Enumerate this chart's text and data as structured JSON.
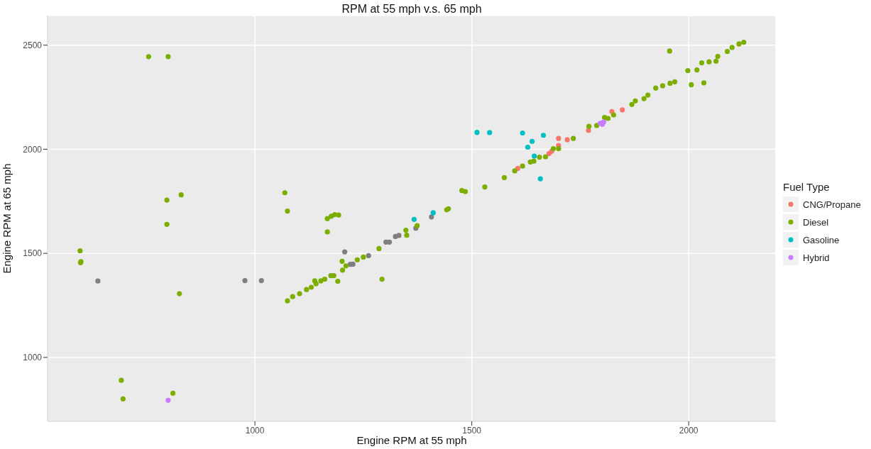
{
  "chart_data": {
    "type": "scatter",
    "title": "RPM at 55 mph v.s. 65 mph",
    "xlabel": "Engine RPM at 55 mph",
    "ylabel": "Engine RPM at 65 mph",
    "legend_title": "Fuel Type",
    "xlim": [
      522,
      2201
    ],
    "ylim": [
      693,
      2642
    ],
    "xticks": [
      1000,
      1500,
      2000
    ],
    "yticks": [
      1000,
      1500,
      2000,
      2500
    ],
    "grid": true,
    "legend": "right",
    "marker": "circle",
    "series": [
      {
        "color": "#7f7f7f",
        "x": [
          638,
          977,
          1015,
          1207,
          1220,
          1226,
          1262,
          1302,
          1310,
          1324,
          1332,
          1371,
          1407
        ],
        "values": [
          1367,
          1369,
          1369,
          1507,
          1447,
          1448,
          1489,
          1554,
          1554,
          1581,
          1586,
          1621,
          1675
        ]
      },
      {
        "name": "CNG/Propane",
        "color": "#f8766d",
        "x": [
          1606,
          1678,
          1684,
          1700,
          1700,
          1720,
          1769,
          1823,
          1847
        ],
        "values": [
          1908,
          1979,
          1990,
          2052,
          2018,
          2046,
          2091,
          2181,
          2189
        ]
      },
      {
        "name": "Diesel",
        "color": "#7cae00",
        "x": [
          755,
          800,
          797,
          830,
          797,
          597,
          599,
          598,
          826,
          692,
          696,
          811,
          1069,
          1075,
          1167,
          1176,
          1184,
          1193,
          1167,
          1075,
          1087,
          1103,
          1119,
          1130,
          1141,
          1152,
          1161,
          1175,
          1182,
          1138,
          1191,
          1201,
          1202,
          1210,
          1236,
          1250,
          1286,
          1293,
          1348,
          1350,
          1374,
          1442,
          1446,
          1477,
          1485,
          1530,
          1575,
          1599,
          1617,
          1635,
          1643,
          1656,
          1670,
          1688,
          1700,
          1734,
          1770,
          1788,
          1806,
          1814,
          1827,
          1869,
          1877,
          1897,
          1906,
          1924,
          1940,
          1957,
          1968,
          1956,
          1998,
          2019,
          2006,
          2035,
          2030,
          2047,
          2063,
          2067,
          2089,
          2100,
          2116,
          2127
        ],
        "values": [
          2445,
          2445,
          1756,
          1781,
          1639,
          1512,
          1460,
          1455,
          1306,
          890,
          801,
          828,
          1791,
          1703,
          1667,
          1678,
          1686,
          1684,
          1603,
          1272,
          1292,
          1306,
          1326,
          1337,
          1354,
          1368,
          1376,
          1393,
          1393,
          1368,
          1366,
          1462,
          1419,
          1440,
          1469,
          1482,
          1523,
          1376,
          1611,
          1587,
          1633,
          1709,
          1714,
          1802,
          1797,
          1819,
          1864,
          1896,
          1919,
          1939,
          1943,
          1962,
          1964,
          2003,
          2003,
          2052,
          2110,
          2114,
          2153,
          2148,
          2165,
          2215,
          2232,
          2243,
          2260,
          2294,
          2305,
          2317,
          2324,
          2472,
          2378,
          2381,
          2310,
          2319,
          2415,
          2420,
          2423,
          2446,
          2470,
          2489,
          2506,
          2514
        ]
      },
      {
        "name": "Gasoline",
        "color": "#00bfc4",
        "x": [
          1367,
          1411,
          1512,
          1541,
          1617,
          1665,
          1639,
          1629,
          1644,
          1658
        ],
        "values": [
          1663,
          1695,
          2081,
          2080,
          2078,
          2067,
          2038,
          2010,
          1967,
          1858
        ]
      },
      {
        "name": "Hybrid",
        "color": "#c77cff",
        "x": [
          800,
          1796,
          1804,
          1801
        ],
        "values": [
          794,
          2125,
          2131,
          2120
        ]
      }
    ]
  }
}
